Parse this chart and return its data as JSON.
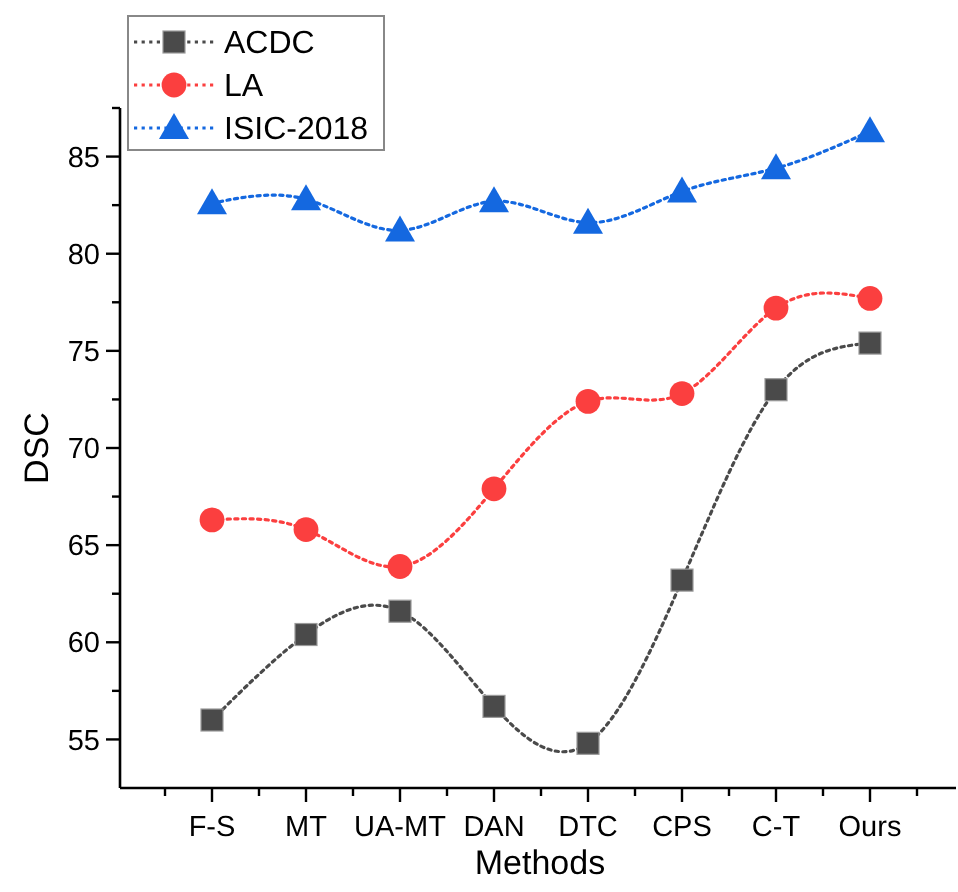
{
  "chart_data": {
    "type": "line",
    "xlabel": "Methods",
    "ylabel": "DSC",
    "categories": [
      "F-S",
      "MT",
      "UA-MT",
      "DAN",
      "DTC",
      "CPS",
      "C-T",
      "Ours"
    ],
    "series": [
      {
        "name": "ACDC",
        "color": "#4a4a4a",
        "marker": "square",
        "values": [
          56.0,
          60.4,
          61.6,
          56.7,
          54.8,
          63.2,
          73.0,
          75.4
        ]
      },
      {
        "name": "LA",
        "color": "#fb3f3f",
        "marker": "circle",
        "values": [
          66.3,
          65.8,
          63.9,
          67.9,
          72.4,
          72.8,
          77.2,
          77.7
        ]
      },
      {
        "name": "ISIC-2018",
        "color": "#1468e0",
        "marker": "triangle",
        "values": [
          82.6,
          82.8,
          81.2,
          82.7,
          81.6,
          83.2,
          84.4,
          86.3
        ]
      }
    ],
    "ylim": [
      52.5,
      87.5
    ],
    "yticks": [
      55,
      {
        "value": 57.5,
        "label": null
      },
      60,
      {
        "value": 62.5,
        "label": null
      },
      65,
      {
        "value": 67.5,
        "label": null
      },
      70,
      {
        "value": 72.5,
        "label": null
      },
      75,
      {
        "value": 77.5,
        "label": null
      },
      80,
      {
        "value": 82.5,
        "label": null
      },
      85,
      {
        "value": 87.5,
        "label": null
      }
    ],
    "line_style": "dotted",
    "legend": "top left"
  }
}
